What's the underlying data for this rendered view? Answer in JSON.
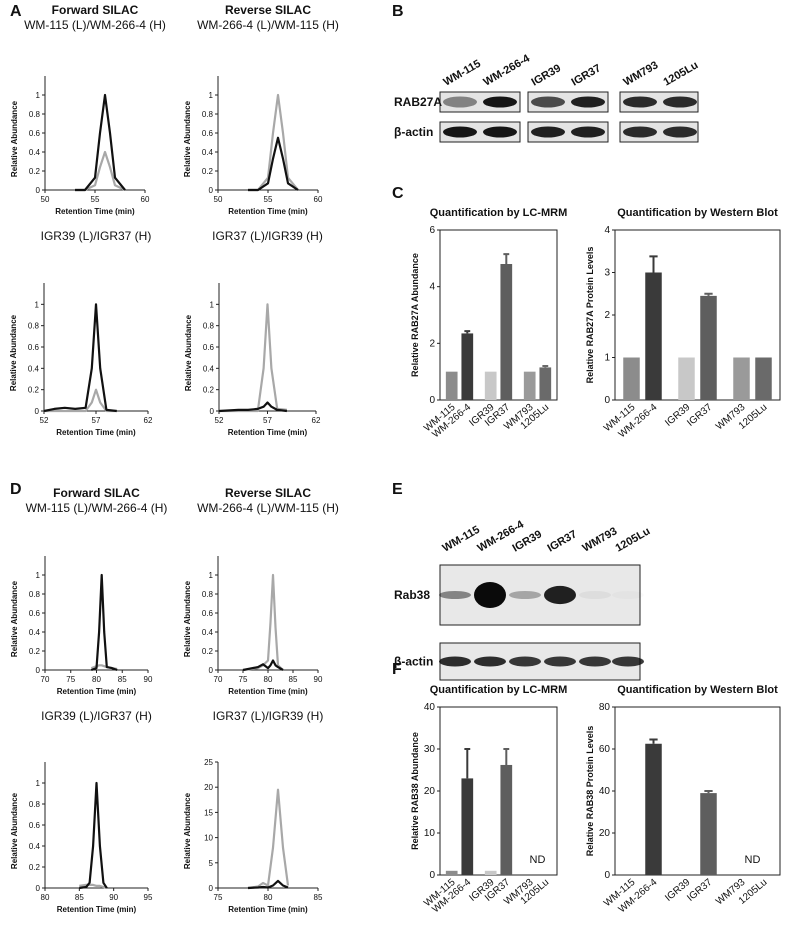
{
  "panel_labels": [
    "A",
    "B",
    "C",
    "D",
    "E",
    "F"
  ],
  "blots": [
    {
      "lanes": [
        "WM-115",
        "WM-266-4",
        "IGR39",
        "IGR37",
        "WM793",
        "1205Lu"
      ],
      "rows": [
        "RAB27A",
        "β-actin"
      ]
    },
    {
      "lanes": [
        "WM-115",
        "WM-266-4",
        "IGR39",
        "IGR37",
        "WM793",
        "1205Lu"
      ],
      "rows": [
        "Rab38",
        "β-actin"
      ]
    }
  ],
  "chart_data": [
    {
      "type": "line",
      "title": "Forward SILAC",
      "subtitle": "WM-115 (L)/WM-266-4 (H)",
      "x_label": "Retention Time (min)",
      "y_label": "Relative Abundance",
      "xlim": [
        50,
        60
      ],
      "xticks": [
        50,
        55,
        60
      ],
      "ylim": [
        0,
        1.2
      ],
      "yticks": [
        0,
        0.2,
        0.4,
        0.6,
        0.8,
        1
      ],
      "x": [
        53,
        54,
        55,
        55.5,
        56,
        56.5,
        57,
        58
      ],
      "series": [
        {
          "color": "#a8a8a8",
          "values": [
            0,
            0,
            0.05,
            0.24,
            0.4,
            0.24,
            0.05,
            0
          ]
        },
        {
          "color": "#111111",
          "values": [
            0,
            0,
            0.13,
            0.6,
            1,
            0.6,
            0.13,
            0
          ]
        }
      ]
    },
    {
      "type": "line",
      "title": "Reverse SILAC",
      "subtitle": "WM-266-4 (L)/WM-115 (H)",
      "x_label": "Retention Time (min)",
      "y_label": "Relative Abundance",
      "xlim": [
        50,
        60
      ],
      "xticks": [
        50,
        55,
        60
      ],
      "ylim": [
        0,
        1.2
      ],
      "yticks": [
        0,
        0.2,
        0.4,
        0.6,
        0.8,
        1
      ],
      "x": [
        53,
        54,
        55,
        55.5,
        56,
        56.5,
        57,
        58
      ],
      "series": [
        {
          "color": "#a8a8a8",
          "values": [
            0,
            0,
            0.13,
            0.6,
            1,
            0.6,
            0.13,
            0
          ]
        },
        {
          "color": "#111111",
          "values": [
            0,
            0,
            0.07,
            0.33,
            0.55,
            0.33,
            0.07,
            0
          ]
        }
      ]
    },
    {
      "type": "line",
      "subtitle": "IGR39 (L)/IGR37 (H)",
      "x_label": "Retention Time (min)",
      "y_label": "Relative Abundance",
      "xlim": [
        52,
        62
      ],
      "xticks": [
        52,
        57,
        62
      ],
      "ylim": [
        0,
        1.2
      ],
      "yticks": [
        0,
        0.2,
        0.4,
        0.6,
        0.8,
        1
      ],
      "x": [
        52,
        53,
        54,
        55,
        56,
        56.6,
        57,
        57.4,
        58,
        59
      ],
      "series": [
        {
          "color": "#a8a8a8",
          "values": [
            0,
            0,
            0,
            0,
            0,
            0.08,
            0.2,
            0.08,
            0,
            0
          ]
        },
        {
          "color": "#111111",
          "values": [
            0,
            0.02,
            0.03,
            0.02,
            0.03,
            0.4,
            1,
            0.4,
            0.01,
            0
          ]
        }
      ]
    },
    {
      "type": "line",
      "subtitle": "IGR37 (L)/IGR39 (H)",
      "x_label": "Retention Time (min)",
      "y_label": "Relative Abundance",
      "xlim": [
        52,
        62
      ],
      "xticks": [
        52,
        57,
        62
      ],
      "ylim": [
        0,
        1.2
      ],
      "yticks": [
        0,
        0.2,
        0.4,
        0.6,
        0.8,
        1
      ],
      "x": [
        52,
        54,
        55,
        56,
        56.6,
        57,
        57.4,
        58,
        59
      ],
      "series": [
        {
          "color": "#a8a8a8",
          "values": [
            0,
            0,
            0,
            0,
            0.4,
            1,
            0.4,
            0.02,
            0.01
          ]
        },
        {
          "color": "#111111",
          "values": [
            0,
            0.01,
            0.01,
            0.02,
            0.04,
            0.08,
            0.04,
            0.01,
            0
          ]
        }
      ]
    },
    {
      "type": "bar",
      "title": "Quantification by LC-MRM",
      "y_label": "Relative RAB27A Abundance",
      "categories": [
        "WM-115",
        "WM-266-4",
        "IGR39",
        "IGR37",
        "WM793",
        "1205Lu"
      ],
      "values": [
        1,
        2.35,
        1,
        4.8,
        1,
        1.15
      ],
      "errors": [
        0,
        0.08,
        0,
        0.35,
        0,
        0.05
      ],
      "colors": [
        "#8c8c8c",
        "#3a3a3a",
        "#c8c8c8",
        "#5e5e5e",
        "#9a9a9a",
        "#6a6a6a"
      ],
      "ylim": [
        0,
        6
      ],
      "yticks": [
        0,
        2,
        4,
        6
      ]
    },
    {
      "type": "bar",
      "title": "Quantification by Western Blot",
      "y_label": "Relative RAB27A Protein Levels",
      "categories": [
        "WM-115",
        "WM-266-4",
        "IGR39",
        "IGR37",
        "WM793",
        "1205Lu"
      ],
      "values": [
        1,
        3,
        1,
        2.45,
        1,
        1
      ],
      "errors": [
        0,
        0.38,
        0,
        0.05,
        0,
        0
      ],
      "colors": [
        "#8c8c8c",
        "#3a3a3a",
        "#c8c8c8",
        "#5e5e5e",
        "#9a9a9a",
        "#6a6a6a"
      ],
      "ylim": [
        0,
        4
      ],
      "yticks": [
        0,
        1,
        2,
        3,
        4
      ]
    },
    {
      "type": "line",
      "title": "Forward SILAC",
      "subtitle": "WM-115 (L)/WM-266-4 (H)",
      "x_label": "Retention Time (min)",
      "y_label": "Relative Abundance",
      "xlim": [
        70,
        90
      ],
      "xticks": [
        70,
        75,
        80,
        85,
        90
      ],
      "ylim": [
        0,
        1.2
      ],
      "yticks": [
        0,
        0.2,
        0.4,
        0.6,
        0.8,
        1
      ],
      "x": [
        79,
        80,
        80.5,
        81,
        81.5,
        82,
        83,
        84
      ],
      "series": [
        {
          "color": "#a8a8a8",
          "values": [
            0.02,
            0.04,
            0.05,
            0.05,
            0.04,
            0.03,
            0.02,
            0.01
          ]
        },
        {
          "color": "#111111",
          "values": [
            0,
            0.02,
            0.4,
            1,
            0.4,
            0.03,
            0.02,
            0
          ]
        }
      ]
    },
    {
      "type": "line",
      "title": "Reverse SILAC",
      "subtitle": "WM-266-4 (L)/WM-115 (H)",
      "x_label": "Retention Time (min)",
      "y_label": "Relative Abundance",
      "xlim": [
        70,
        90
      ],
      "xticks": [
        70,
        75,
        80,
        85,
        90
      ],
      "ylim": [
        0,
        1.2
      ],
      "yticks": [
        0,
        0.2,
        0.4,
        0.6,
        0.8,
        1
      ],
      "x": [
        75,
        78,
        79,
        80,
        80.5,
        81,
        81.5,
        82,
        83
      ],
      "series": [
        {
          "color": "#a8a8a8",
          "values": [
            0,
            0.02,
            0.05,
            0.1,
            0.5,
            1,
            0.45,
            0.05,
            0
          ]
        },
        {
          "color": "#111111",
          "values": [
            0,
            0.03,
            0.06,
            0.02,
            0.05,
            0.1,
            0.05,
            0.03,
            0
          ]
        }
      ]
    },
    {
      "type": "line",
      "subtitle": "IGR39 (L)/IGR37 (H)",
      "x_label": "Retention Time (min)",
      "y_label": "Relative Abundance",
      "xlim": [
        80,
        95
      ],
      "xticks": [
        80,
        85,
        90,
        95
      ],
      "ylim": [
        0,
        1.2
      ],
      "yticks": [
        0,
        0.2,
        0.4,
        0.6,
        0.8,
        1
      ],
      "x": [
        85,
        86,
        86.5,
        87,
        87.5,
        88,
        88.5,
        89
      ],
      "series": [
        {
          "color": "#a8a8a8",
          "values": [
            0.02,
            0.03,
            0.03,
            0.03,
            0.02,
            0.02,
            0.01,
            0
          ]
        },
        {
          "color": "#111111",
          "values": [
            0,
            0.01,
            0.05,
            0.4,
            1,
            0.4,
            0.05,
            0
          ]
        }
      ]
    },
    {
      "type": "line",
      "subtitle": "IGR37 (L)/IGR39 (H)",
      "x_label": "Retention Time (min)",
      "y_label": "Relative Abundance",
      "xlim": [
        75,
        85
      ],
      "xticks": [
        75,
        80,
        85
      ],
      "ylim": [
        0,
        25
      ],
      "yticks": [
        0,
        5,
        10,
        15,
        20,
        25
      ],
      "x": [
        78,
        79,
        79.5,
        80,
        80.5,
        81,
        81.5,
        82
      ],
      "series": [
        {
          "color": "#a8a8a8",
          "values": [
            0,
            0.3,
            1,
            0.5,
            8,
            19.5,
            8,
            0.5
          ]
        },
        {
          "color": "#111111",
          "values": [
            0,
            0.1,
            0.2,
            0.1,
            0.5,
            1.4,
            0.5,
            0.1
          ]
        }
      ]
    },
    {
      "type": "bar",
      "title": "Quantification by LC-MRM",
      "y_label": "Relative RAB38 Abundance",
      "annotation": "ND",
      "categories": [
        "WM-115",
        "WM-266-4",
        "IGR39",
        "IGR37",
        "WM793",
        "1205Lu"
      ],
      "values": [
        1,
        23,
        1,
        26.2,
        null,
        null
      ],
      "errors": [
        0,
        7,
        0,
        3.8,
        null,
        null
      ],
      "colors": [
        "#8c8c8c",
        "#3a3a3a",
        "#c8c8c8",
        "#5e5e5e",
        "#9a9a9a",
        "#6a6a6a"
      ],
      "ylim": [
        0,
        40
      ],
      "yticks": [
        0,
        10,
        20,
        30,
        40
      ]
    },
    {
      "type": "bar",
      "title": "Quantification by Western Blot",
      "y_label": "Relative RAB38 Protein Levels",
      "annotation": "ND",
      "categories": [
        "WM-115",
        "WM-266-4",
        "IGR39",
        "IGR37",
        "WM793",
        "1205Lu"
      ],
      "values": [
        0,
        62.5,
        0,
        39,
        null,
        null
      ],
      "errors": [
        0,
        2,
        0,
        1,
        null,
        null
      ],
      "colors": [
        "#8c8c8c",
        "#3a3a3a",
        "#c8c8c8",
        "#5e5e5e",
        "#9a9a9a",
        "#6a6a6a"
      ],
      "ylim": [
        0,
        80
      ],
      "yticks": [
        0,
        20,
        40,
        60,
        80
      ]
    }
  ]
}
